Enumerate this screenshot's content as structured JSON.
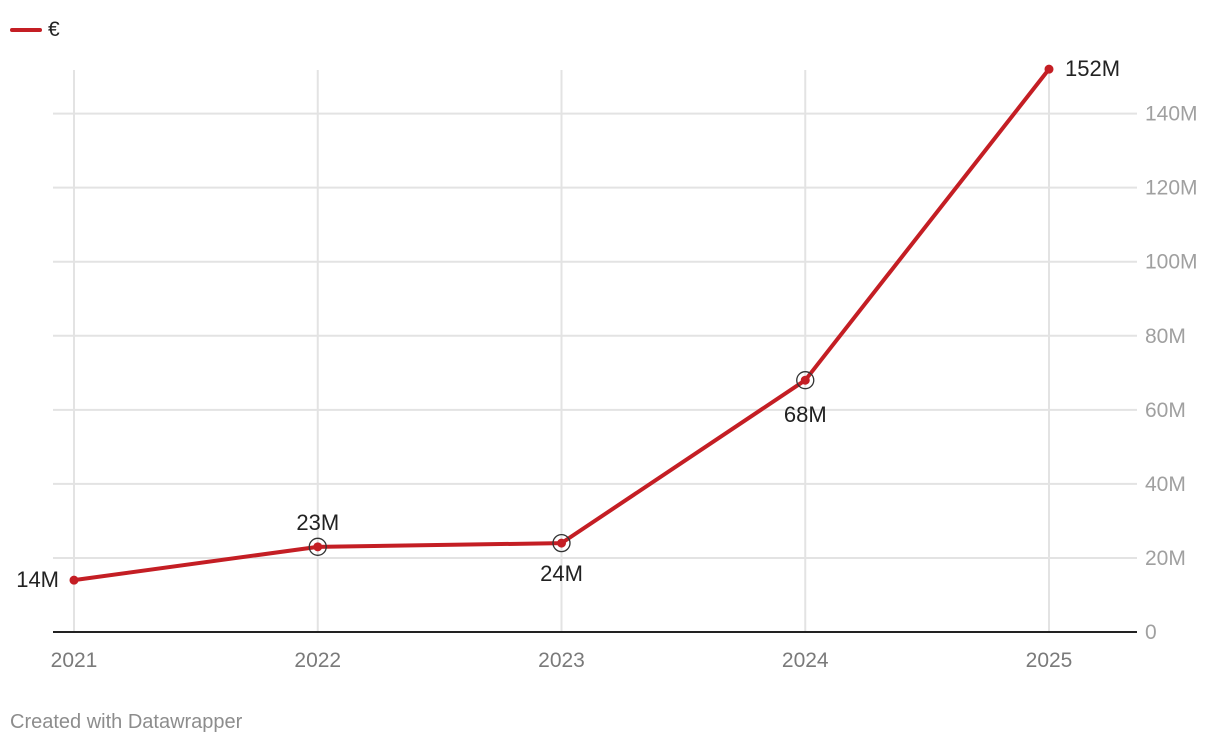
{
  "chart_data": {
    "type": "line",
    "legend": [
      {
        "label": "€",
        "color": "#c41e24"
      }
    ],
    "x": [
      "2021",
      "2022",
      "2023",
      "2024",
      "2025"
    ],
    "series": [
      {
        "name": "€",
        "values": [
          14,
          23,
          24,
          68,
          152
        ],
        "color": "#c41e24"
      }
    ],
    "data_labels": [
      "14M",
      "23M",
      "24M",
      "68M",
      "152M"
    ],
    "yticks": [
      0,
      20,
      40,
      60,
      80,
      100,
      120,
      140
    ],
    "ytick_labels": [
      "0",
      "20M",
      "40M",
      "60M",
      "80M",
      "100M",
      "120M",
      "140M"
    ],
    "ylim": [
      0,
      152
    ],
    "y_axis_side": "right",
    "grid": true,
    "legend_position": "top-left",
    "highlighted_points": [
      "2022",
      "2023",
      "2024"
    ]
  },
  "footer": {
    "credit": "Created with Datawrapper"
  }
}
